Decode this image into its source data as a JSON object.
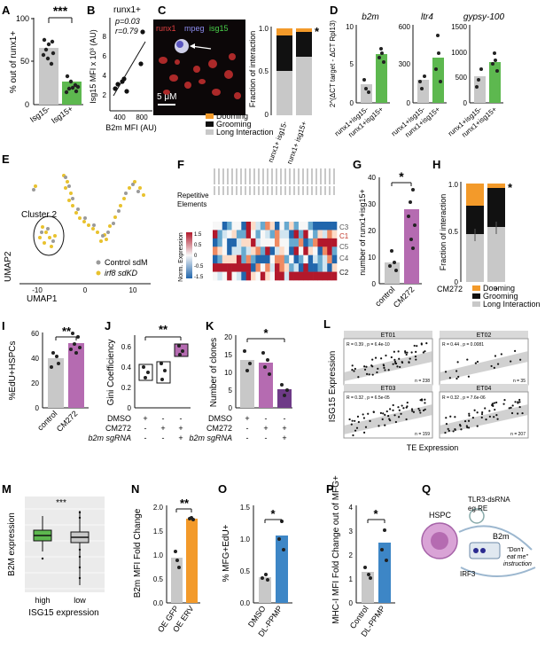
{
  "labels": {
    "A": "A",
    "B": "B",
    "C": "C",
    "D": "D",
    "E": "E",
    "F": "F",
    "G": "G",
    "H": "H",
    "I": "I",
    "J": "J",
    "K": "K",
    "L": "L",
    "M": "M",
    "N": "N",
    "O": "O",
    "P": "P",
    "Q": "Q"
  },
  "colors": {
    "green": "#5db84f",
    "orange": "#f39a2a",
    "purple": "#b56bb1",
    "blue": "#3d86c6",
    "grey": "#c8c8c8",
    "black": "#111111"
  },
  "panelA": {
    "ylabel": "% out of runx1+",
    "sig": "***",
    "cats": [
      "Isg15-",
      "Isg15+"
    ],
    "ticks": [
      "0",
      "50",
      "100"
    ]
  },
  "panelB": {
    "title": "runx1+",
    "p": "p=0.03",
    "r": "r=0.79",
    "ylabel": "Isg15 MFI x 10³ (AU)",
    "xlabel": "B2m MFI (AU)",
    "xticks": [
      "400",
      "800"
    ],
    "yticks": [
      "2",
      "4",
      "6",
      "8"
    ]
  },
  "panelC": {
    "ch1": "runx1",
    "ch2": "mpeg",
    "ch3": "isg15",
    "scale": "5 μM",
    "ylabel": "Fraction of interaction",
    "ticks": [
      "0",
      "0.5",
      "1.0"
    ],
    "cats": [
      "runx1+ isg15-",
      "runx1+ isg15+"
    ],
    "sig": "*",
    "legend": [
      "Dooming",
      "Grooming",
      "Long Interaction"
    ]
  },
  "panelD": {
    "ylabel": "2^(ΔCT target - ΔCT Rpl13)",
    "titles": [
      "b2m",
      "ltr4",
      "gypsy-100"
    ],
    "cats": [
      "runx1+isg15-",
      "runx1+isg15+"
    ],
    "ymax": [
      "10",
      "600",
      "1500"
    ],
    "ymid": [
      "5",
      "300",
      "1000"
    ],
    "ylow": [
      "",
      "",
      "500"
    ],
    "yzero": [
      "0",
      "0",
      "0"
    ]
  },
  "panelE": {
    "cluster": "Cluster 2",
    "legend": [
      "Control sdM",
      "irf8 sdKD"
    ],
    "xlabel": "UMAP1",
    "ylabel": "UMAP2",
    "xticks": [
      "-10",
      "0",
      "10"
    ]
  },
  "panelF": {
    "label1": "Repetitive",
    "label2": "Elements",
    "scale_title": "Norm. Expression",
    "scale_ticks": [
      "1.5",
      "1",
      "0.5",
      "0",
      "-0.5",
      "-1",
      "-1.5"
    ],
    "rows": [
      "C3",
      "C1",
      "C5",
      "C4",
      "C2"
    ]
  },
  "panelG": {
    "ylabel": "number of runx1+isg15+",
    "sig": "*",
    "cats": [
      "control",
      "CM272"
    ],
    "ticks": [
      "0",
      "10",
      "20",
      "30",
      "40"
    ]
  },
  "panelH": {
    "ylabel": "Fraction of interaction",
    "ticks": [
      "0",
      "0.5",
      "1.0"
    ],
    "sig": "*",
    "cm": "CM272",
    "signs": [
      "-",
      "+"
    ],
    "legend": [
      "Dooming",
      "Grooming",
      "Long Interaction"
    ]
  },
  "panelI": {
    "ylabel": "%EdU+HSPCs",
    "sig": "**",
    "cats": [
      "control",
      "CM272"
    ],
    "ticks": [
      "0",
      "20",
      "40",
      "60"
    ]
  },
  "panelJ": {
    "ylabel": "Gini Coefficiency",
    "sig": "**",
    "ticks": [
      "0",
      "0.2",
      "0.4",
      "0.6"
    ],
    "rows": [
      "DMSO",
      "CM272",
      "b2m sgRNA"
    ]
  },
  "panelK": {
    "ylabel": "Number of clones",
    "sig": "*",
    "ticks": [
      "0",
      "5",
      "10",
      "15",
      "20"
    ],
    "rows": [
      "DMSO",
      "CM272",
      "b2m sgRNA"
    ]
  },
  "panelL": {
    "ylabel": "ISG15 Expression",
    "xlabel": "TE Expression",
    "facets": [
      "ET01",
      "ET02",
      "ET03",
      "ET04"
    ],
    "stats": [
      "R = 0.39 , p = 6.4e-10",
      "R = 0.44 , p = 0.0081",
      "R = 0.32 , p = 6.5e-05",
      "R = 0.32 , p = 7.6e-06"
    ],
    "ns": [
      "n = 238",
      "n = 35",
      "n = 159",
      "n = 207"
    ]
  },
  "panelM": {
    "ylabel": "B2M expression",
    "xlabel": "ISG15 expression",
    "sig": "***",
    "cats": [
      "high",
      "low"
    ],
    "ticks": [
      "0",
      "1",
      "2",
      "3",
      "4",
      "5",
      "6"
    ]
  },
  "panelN": {
    "ylabel": "B2m MFI Fold Change",
    "sig": "**",
    "cats": [
      "OE GFP",
      "OE ERV"
    ],
    "ticks": [
      "0.0",
      "0.5",
      "1.0",
      "1.5",
      "2.0"
    ]
  },
  "panelO": {
    "ylabel": "% MFG+EdU+",
    "sig": "*",
    "cats": [
      "DMSO",
      "DL-PPMP"
    ],
    "ticks": [
      "0.0",
      "0.5",
      "1.0",
      "1.5"
    ]
  },
  "panelP": {
    "ylabel": "MHC-I MFI Fold Change out of MFG+",
    "sig": "*",
    "cats": [
      "Control",
      "DL-PPMP"
    ],
    "ticks": [
      "0",
      "1",
      "2",
      "3",
      "4"
    ]
  },
  "panelQ": {
    "hspc": "HSPC",
    "tlr": "TLR3-dsRNA",
    "egre": "eg.RE",
    "b2m": "B2m",
    "irf3": "IRF3",
    "dont1": "\"Don't",
    "dont2": "eat me\"",
    "dont3": "instruction"
  },
  "chart_data": [
    {
      "panel": "A",
      "type": "bar",
      "categories": [
        "Isg15-",
        "Isg15+"
      ],
      "values": [
        66,
        28
      ],
      "ylim": [
        0,
        100
      ],
      "ylabel": "% out of runx1+"
    },
    {
      "panel": "B",
      "type": "scatter",
      "x": [
        300,
        350,
        450,
        480,
        520,
        760,
        800
      ],
      "y": [
        2.5,
        2.9,
        3.0,
        3.3,
        2.2,
        5.0,
        8.3
      ],
      "xlabel": "B2m MFI (AU)",
      "ylabel": "Isg15 MFI x 10³ (AU)"
    },
    {
      "panel": "C",
      "type": "bar",
      "categories": [
        "runx1+ isg15-",
        "runx1+ isg15+"
      ],
      "series": [
        {
          "name": "Long Interaction",
          "values": [
            0.5,
            0.66
          ]
        },
        {
          "name": "Grooming",
          "values": [
            0.4,
            0.28
          ]
        },
        {
          "name": "Dooming",
          "values": [
            0.1,
            0.06
          ]
        }
      ],
      "ylim": [
        0,
        1
      ]
    },
    {
      "panel": "D",
      "type": "bar",
      "series": [
        {
          "name": "b2m",
          "values": [
            2.5,
            6.5
          ]
        },
        {
          "name": "ltr4",
          "values": [
            180,
            390
          ]
        },
        {
          "name": "gypsy-100",
          "values": [
            480,
            820
          ]
        }
      ],
      "categories": [
        "runx1+isg15-",
        "runx1+isg15+"
      ]
    },
    {
      "panel": "G",
      "type": "bar",
      "categories": [
        "control",
        "CM272"
      ],
      "values": [
        8,
        28
      ],
      "ylim": [
        0,
        40
      ],
      "ylabel": "number of runx1+isg15+"
    },
    {
      "panel": "H",
      "type": "bar",
      "categories": [
        "-",
        "+"
      ],
      "series": [
        {
          "name": "Long Interaction",
          "values": [
            0.45,
            0.55
          ]
        },
        {
          "name": "Grooming",
          "values": [
            0.3,
            0.42
          ]
        },
        {
          "name": "Dooming",
          "values": [
            0.25,
            0.03
          ]
        }
      ],
      "ylim": [
        0,
        1
      ]
    },
    {
      "panel": "I",
      "type": "bar",
      "categories": [
        "control",
        "CM272"
      ],
      "values": [
        40,
        52
      ],
      "ylim": [
        0,
        60
      ],
      "ylabel": "%EdU+HSPCs"
    },
    {
      "panel": "J",
      "type": "box",
      "categories": [
        "DMSO",
        "CM272",
        "CM272+b2m sgRNA"
      ],
      "values": [
        0.45,
        0.47,
        0.62
      ],
      "ylim": [
        0,
        0.7
      ],
      "ylabel": "Gini Coefficiency"
    },
    {
      "panel": "K",
      "type": "bar",
      "categories": [
        "DMSO",
        "CM272",
        "CM272+b2m sgRNA"
      ],
      "values": [
        13.5,
        12.8,
        5.2
      ],
      "ylim": [
        0,
        20
      ],
      "ylabel": "Number of clones"
    },
    {
      "panel": "M",
      "type": "box",
      "categories": [
        "high",
        "low"
      ],
      "values": [
        3.8,
        3.6
      ],
      "ylim": [
        0,
        6
      ],
      "ylabel": "B2M expression"
    },
    {
      "panel": "N",
      "type": "bar",
      "categories": [
        "OE GFP",
        "OE ERV"
      ],
      "values": [
        0.95,
        1.75
      ],
      "ylim": [
        0,
        2
      ],
      "ylabel": "B2m MFI Fold Change"
    },
    {
      "panel": "O",
      "type": "bar",
      "categories": [
        "DMSO",
        "DL-PPMP"
      ],
      "values": [
        0.4,
        1.05
      ],
      "ylim": [
        0,
        1.5
      ],
      "ylabel": "% MFG+EdU+"
    },
    {
      "panel": "P",
      "type": "bar",
      "categories": [
        "Control",
        "DL-PPMP"
      ],
      "values": [
        1.3,
        2.5
      ],
      "ylim": [
        0,
        4
      ],
      "ylabel": "MHC-I MFI Fold Change out of MFG+"
    }
  ]
}
